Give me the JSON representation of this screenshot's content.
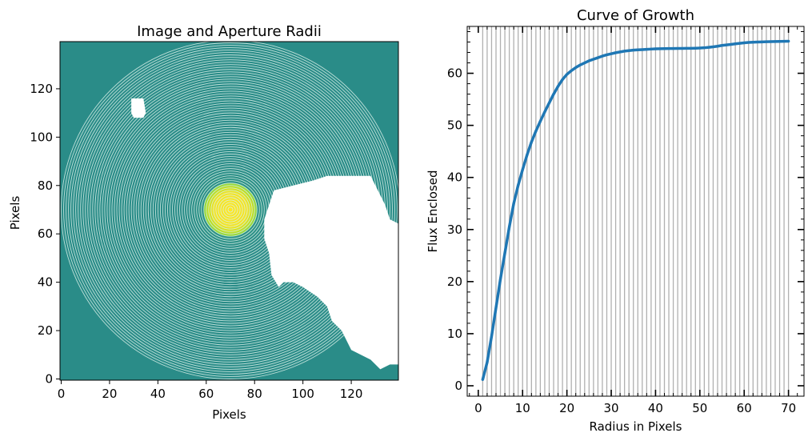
{
  "chart_data": [
    {
      "type": "heatmap",
      "title": "Image and Aperture Radii",
      "xlabel": "Pixels",
      "ylabel": "Pixels",
      "xlim": [
        -0.5,
        139.5
      ],
      "ylim": [
        -0.5,
        139.5
      ],
      "xticks": [
        0,
        20,
        40,
        60,
        80,
        100,
        120
      ],
      "yticks": [
        0,
        20,
        40,
        60,
        80,
        100,
        120
      ],
      "colormap": "viridis",
      "background_color": "#2a8c88",
      "masked_color": "#ffffff",
      "ring_color": "#d8efe8",
      "source_center": [
        70,
        70
      ],
      "source_radius": 11,
      "aperture_radii": [
        1,
        2,
        3,
        4,
        5,
        6,
        7,
        8,
        9,
        10,
        11,
        12,
        13,
        14,
        15,
        16,
        17,
        18,
        19,
        20,
        21,
        22,
        23,
        24,
        25,
        26,
        27,
        28,
        29,
        30,
        31,
        32,
        33,
        34,
        35,
        36,
        37,
        38,
        39,
        40,
        41,
        42,
        43,
        44,
        45,
        46,
        47,
        48,
        49,
        50,
        51,
        52,
        53,
        54,
        55,
        56,
        57,
        58,
        59,
        60,
        61,
        62,
        63,
        64,
        65,
        66,
        67,
        68,
        69,
        70
      ],
      "masked_region": [
        [
          88,
          78
        ],
        [
          96,
          80
        ],
        [
          104,
          82
        ],
        [
          110,
          84
        ],
        [
          118,
          84
        ],
        [
          128,
          84
        ],
        [
          130,
          80
        ],
        [
          134,
          72
        ],
        [
          136,
          66
        ],
        [
          140,
          64
        ],
        [
          140,
          6
        ],
        [
          136,
          6
        ],
        [
          132,
          4
        ],
        [
          128,
          8
        ],
        [
          120,
          12
        ],
        [
          116,
          20
        ],
        [
          112,
          24
        ],
        [
          110,
          30
        ],
        [
          106,
          34
        ],
        [
          100,
          38
        ],
        [
          96,
          40
        ],
        [
          92,
          40
        ],
        [
          90,
          38
        ],
        [
          87,
          43
        ],
        [
          86,
          52
        ],
        [
          84,
          58
        ],
        [
          84,
          66
        ],
        [
          86,
          72
        ]
      ],
      "masked_blob": [
        [
          29,
          116
        ],
        [
          34,
          116
        ],
        [
          35,
          110
        ],
        [
          34,
          108
        ],
        [
          30,
          108
        ],
        [
          29,
          110
        ]
      ]
    },
    {
      "type": "line",
      "title": "Curve of Growth",
      "xlabel": "Radius in Pixels",
      "ylabel": "Flux Enclosed",
      "xlim": [
        -2.5,
        73.5
      ],
      "ylim": [
        -2,
        69
      ],
      "xticks": [
        0,
        10,
        20,
        30,
        40,
        50,
        60,
        70
      ],
      "yticks": [
        0,
        10,
        20,
        30,
        40,
        50,
        60
      ],
      "line_color": "#1f77b4",
      "vline_color": "#b0b0b0",
      "vlines": [
        1,
        2,
        3,
        4,
        5,
        6,
        7,
        8,
        9,
        10,
        11,
        12,
        13,
        14,
        15,
        16,
        17,
        18,
        19,
        20,
        21,
        22,
        23,
        24,
        25,
        26,
        27,
        28,
        29,
        30,
        31,
        32,
        33,
        34,
        35,
        36,
        37,
        38,
        39,
        40,
        41,
        42,
        43,
        44,
        45,
        46,
        47,
        48,
        49,
        50,
        51,
        52,
        53,
        54,
        55,
        56,
        57,
        58,
        59,
        60,
        61,
        62,
        63,
        64,
        65,
        66,
        67,
        68,
        69,
        70
      ],
      "x": [
        1,
        2,
        3,
        4,
        5,
        6,
        7,
        8,
        9,
        10,
        11,
        12,
        13,
        14,
        15,
        16,
        17,
        18,
        19,
        20,
        21,
        22,
        23,
        24,
        25,
        26,
        27,
        28,
        29,
        30,
        31,
        32,
        33,
        34,
        35,
        36,
        37,
        38,
        39,
        40,
        41,
        42,
        43,
        44,
        45,
        46,
        47,
        48,
        49,
        50,
        51,
        52,
        53,
        54,
        55,
        56,
        57,
        58,
        59,
        60,
        61,
        62,
        63,
        64,
        65,
        66,
        67,
        68,
        69,
        70
      ],
      "series": [
        {
          "values": [
            1.2,
            4.5,
            9.5,
            15,
            20.5,
            25.5,
            30.5,
            35,
            38.5,
            41.5,
            44.3,
            46.8,
            48.9,
            50.8,
            52.6,
            54.3,
            56,
            57.5,
            58.8,
            59.8,
            60.5,
            61.1,
            61.6,
            62.0,
            62.4,
            62.7,
            63.0,
            63.3,
            63.55,
            63.75,
            63.95,
            64.1,
            64.25,
            64.35,
            64.45,
            64.5,
            64.55,
            64.6,
            64.65,
            64.7,
            64.72,
            64.74,
            64.75,
            64.76,
            64.77,
            64.78,
            64.79,
            64.8,
            64.82,
            64.85,
            64.9,
            64.98,
            65.08,
            65.2,
            65.35,
            65.45,
            65.55,
            65.65,
            65.75,
            65.85,
            65.92,
            65.97,
            66.0,
            66.03,
            66.06,
            66.08,
            66.1,
            66.12,
            66.14,
            66.16
          ]
        }
      ]
    }
  ]
}
